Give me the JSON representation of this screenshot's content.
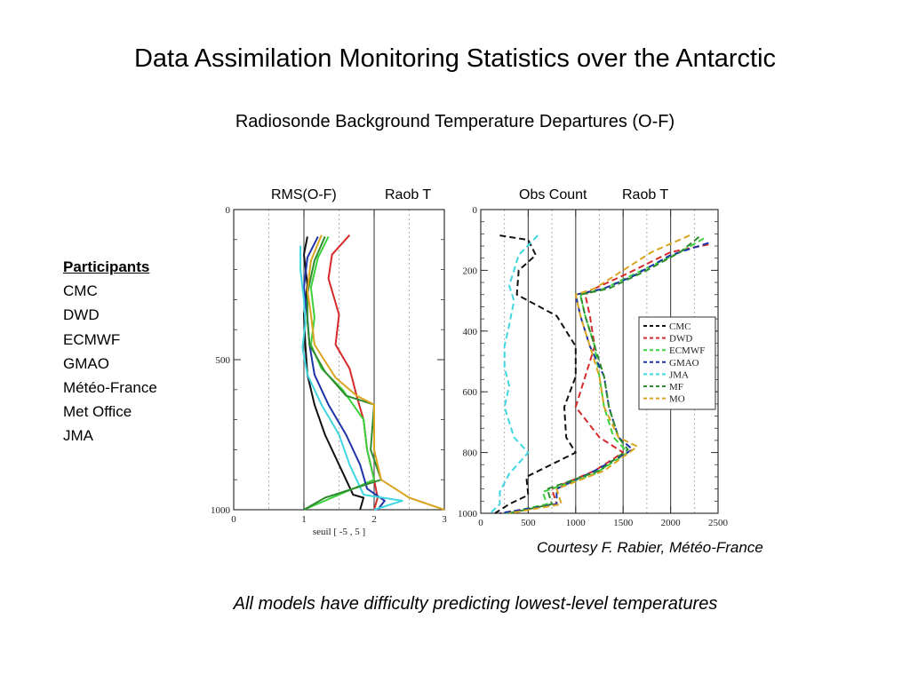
{
  "page": {
    "title": "Data Assimilation Monitoring Statistics over the Antarctic",
    "subtitle": "Radiosonde Background Temperature Departures (O-F)",
    "courtesy": "Courtesy F. Rabier, Météo-France",
    "footnote": "All models have difficulty predicting lowest-level temperatures"
  },
  "participants": {
    "title": "Participants",
    "items": [
      "CMC",
      "DWD",
      "ECMWF",
      "GMAO",
      "Météo-France",
      "Met Office",
      "JMA"
    ]
  },
  "colors": {
    "CMC": "#111111",
    "DWD": "#d62a2a",
    "ECMWF": "#3bd13b",
    "GMAO": "#1f33a8",
    "JMA": "#3fd6e0",
    "MF": "#2e8b2e",
    "MO": "#d9a520"
  },
  "chart_data": [
    {
      "type": "line",
      "header_labels": [
        "RMS(O-F)",
        "Raob T"
      ],
      "xlabel": "seuil [ -5 , 5 ]",
      "ylabel": "",
      "xlim": [
        0,
        3
      ],
      "ylim": [
        1000,
        0
      ],
      "xticks": [
        0,
        1,
        2,
        3
      ],
      "yticks": [
        0,
        500,
        1000
      ],
      "series": [
        {
          "key": "CMC",
          "x": [
            1.05,
            1.0,
            1.05,
            1.0,
            1.02,
            1.05,
            1.15,
            1.3,
            1.5,
            1.7,
            1.85,
            1.8
          ],
          "y": [
            90,
            150,
            250,
            350,
            450,
            550,
            650,
            750,
            850,
            950,
            960,
            1000
          ]
        },
        {
          "key": "DWD",
          "x": [
            1.65,
            1.4,
            1.35,
            1.5,
            1.45,
            1.65,
            1.75,
            1.85,
            1.9,
            2.0,
            2.05,
            2.0
          ],
          "y": [
            85,
            150,
            230,
            350,
            450,
            530,
            620,
            700,
            800,
            900,
            960,
            1000
          ]
        },
        {
          "key": "ECMWF",
          "x": [
            1.35,
            1.2,
            1.1,
            1.15,
            1.1,
            1.25,
            1.55,
            1.85,
            1.9,
            2.0,
            1.4,
            1.0
          ],
          "y": [
            90,
            160,
            260,
            360,
            450,
            530,
            600,
            700,
            800,
            900,
            960,
            1000
          ]
        },
        {
          "key": "GMAO",
          "x": [
            1.2,
            1.05,
            1.0,
            1.05,
            1.08,
            1.15,
            1.35,
            1.6,
            1.8,
            1.9,
            2.15,
            2.05
          ],
          "y": [
            90,
            160,
            260,
            360,
            450,
            550,
            650,
            750,
            850,
            930,
            970,
            1000
          ]
        },
        {
          "key": "JMA",
          "x": [
            0.95,
            0.95,
            1.0,
            1.02,
            0.98,
            1.05,
            1.25,
            1.5,
            1.65,
            1.85,
            2.4,
            2.0
          ],
          "y": [
            120,
            200,
            300,
            380,
            460,
            550,
            650,
            750,
            850,
            950,
            970,
            1000
          ]
        },
        {
          "key": "MF",
          "x": [
            1.3,
            1.15,
            1.05,
            1.05,
            1.08,
            1.3,
            1.6,
            2.0,
            1.95,
            2.1,
            1.3,
            1.0
          ],
          "y": [
            90,
            170,
            280,
            370,
            450,
            540,
            620,
            650,
            800,
            900,
            960,
            1000
          ]
        },
        {
          "key": "MO",
          "x": [
            1.25,
            1.1,
            1.05,
            1.1,
            1.15,
            1.45,
            1.75,
            2.0,
            2.0,
            2.1,
            2.5,
            3.0
          ],
          "y": [
            85,
            170,
            270,
            350,
            450,
            560,
            620,
            650,
            800,
            900,
            960,
            1000
          ]
        }
      ]
    },
    {
      "type": "line",
      "header_labels": [
        "Obs Count",
        "Raob T"
      ],
      "xlabel": "",
      "ylabel": "",
      "xlim": [
        0,
        2500
      ],
      "ylim": [
        1000,
        0
      ],
      "xticks": [
        0,
        500,
        1000,
        1500,
        2000,
        2500
      ],
      "yticks": [
        0,
        200,
        400,
        600,
        800,
        1000
      ],
      "legend": {
        "position": "right",
        "entries": [
          "CMC",
          "DWD",
          "ECMWF",
          "GMAO",
          "JMA",
          "MF",
          "MO"
        ]
      },
      "series": [
        {
          "key": "CMC",
          "x": [
            200,
            500,
            580,
            400,
            380,
            800,
            1000,
            1000,
            880,
            900,
            1000,
            480,
            500,
            300,
            150
          ],
          "y": [
            85,
            100,
            150,
            200,
            280,
            350,
            450,
            550,
            650,
            750,
            800,
            880,
            940,
            970,
            1000
          ]
        },
        {
          "key": "DWD",
          "x": [
            2400,
            2000,
            1550,
            1200,
            1100,
            1150,
            1200,
            1100,
            1000,
            1250,
            1500,
            1200,
            750,
            800,
            200
          ],
          "y": [
            115,
            140,
            210,
            260,
            280,
            350,
            450,
            550,
            650,
            750,
            800,
            860,
            920,
            970,
            1000
          ]
        },
        {
          "key": "ECMWF",
          "x": [
            2350,
            2100,
            1700,
            1300,
            1050,
            1100,
            1200,
            1250,
            1300,
            1400,
            1550,
            1200,
            650,
            700,
            250
          ],
          "y": [
            95,
            140,
            200,
            260,
            280,
            350,
            450,
            550,
            650,
            750,
            800,
            870,
            930,
            970,
            1000
          ]
        },
        {
          "key": "GMAO",
          "x": [
            2400,
            2000,
            1600,
            1300,
            1000,
            1050,
            1150,
            1300,
            1350,
            1450,
            1600,
            1200,
            800,
            800,
            200
          ],
          "y": [
            110,
            150,
            220,
            260,
            280,
            350,
            450,
            550,
            650,
            750,
            790,
            860,
            920,
            970,
            1000
          ]
        },
        {
          "key": "JMA",
          "x": [
            600,
            400,
            300,
            350,
            300,
            250,
            250,
            300,
            250,
            350,
            500,
            300,
            200,
            200,
            100
          ],
          "y": [
            85,
            150,
            250,
            300,
            380,
            450,
            520,
            580,
            650,
            750,
            800,
            870,
            930,
            970,
            1000
          ]
        },
        {
          "key": "MF",
          "x": [
            2300,
            2100,
            1750,
            1350,
            1050,
            1100,
            1200,
            1300,
            1350,
            1450,
            1550,
            1250,
            700,
            750,
            300
          ],
          "y": [
            90,
            140,
            200,
            260,
            280,
            350,
            450,
            550,
            650,
            750,
            790,
            860,
            920,
            970,
            1000
          ]
        },
        {
          "key": "MO",
          "x": [
            2200,
            1800,
            1500,
            1200,
            1000,
            1050,
            1150,
            1250,
            1300,
            1450,
            1650,
            1300,
            800,
            850,
            300
          ],
          "y": [
            85,
            140,
            200,
            260,
            280,
            350,
            450,
            550,
            650,
            750,
            780,
            860,
            920,
            970,
            1000
          ]
        }
      ]
    }
  ]
}
